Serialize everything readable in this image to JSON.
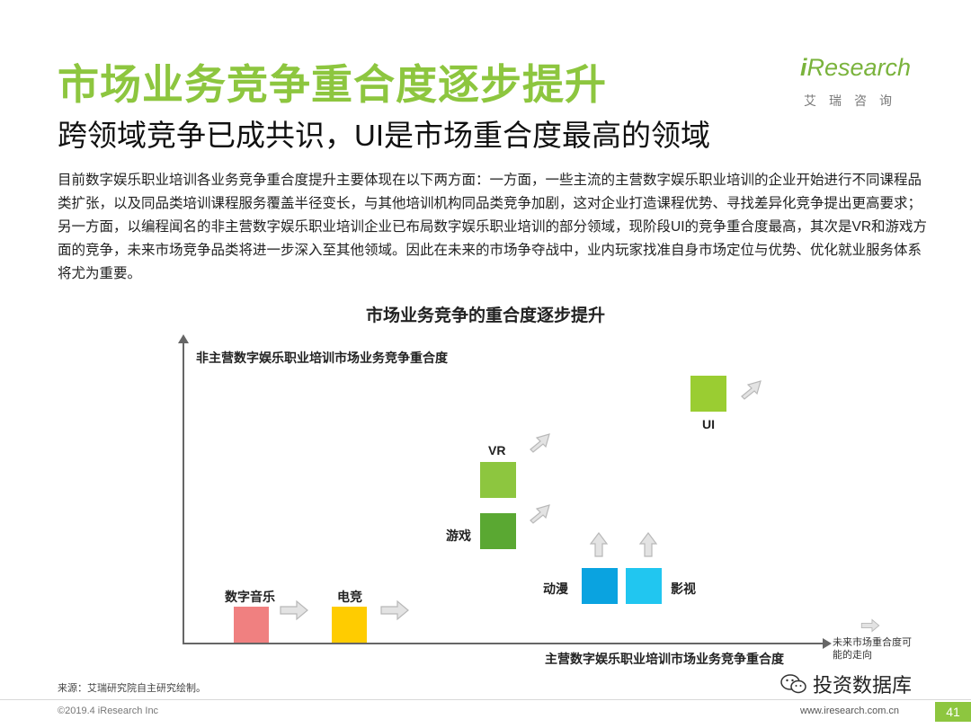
{
  "header": {
    "title": "市场业务竞争重合度逐步提升",
    "subtitle": "跨领域竞争已成共识，UI是市场重合度最高的领域"
  },
  "logo": {
    "brand": "Research",
    "brand_prefix": "i",
    "chinese": "艾瑞咨询"
  },
  "body_text": "目前数字娱乐职业培训各业务竞争重合度提升主要体现在以下两方面：一方面，一些主流的主营数字娱乐职业培训的企业开始进行不同课程品类扩张，以及同品类培训课程服务覆盖半径变长，与其他培训机构同品类竞争加剧，这对企业打造课程优势、寻找差异化竞争提出更高要求；另一方面，以编程闻名的非主营数字娱乐职业培训企业已布局数字娱乐职业培训的部分领域，现阶段UI的竞争重合度最高，其次是VR和游戏方面的竞争，未来市场竞争品类将进一步深入至其他领域。因此在未来的市场争夺战中，业内玩家找准自身市场定位与优势、优化就业服务体系将尤为重要。",
  "diagram": {
    "title": "市场业务竞争的重合度逐步提升",
    "y_axis_label": "非主营数字娱乐职业培训市场业务竞争重合度",
    "x_axis_label": "主营数字娱乐职业培训市场业务竞争重合度",
    "legend_text": "未来市场重合度可能的走向",
    "items": {
      "music": {
        "label": "数字音乐",
        "color": "#f08080"
      },
      "esports": {
        "label": "电竞",
        "color": "#ffcc00"
      },
      "game": {
        "label": "游戏",
        "color": "#5aa832"
      },
      "vr": {
        "label": "VR",
        "color": "#8dc63f"
      },
      "animation": {
        "label": "动漫",
        "color": "#0aa3e0"
      },
      "film": {
        "label": "影视",
        "color": "#21c6f0"
      },
      "ui": {
        "label": "UI",
        "color": "#9acd32"
      }
    }
  },
  "footer": {
    "source": "来源：艾瑞研究院自主研究绘制。",
    "copyright": "©2019.4 iResearch Inc",
    "site": "www.iresearch.com.cn",
    "page": "41",
    "watermark": "投资数据库"
  },
  "colors": {
    "accent": "#8dc63f",
    "arrow_gray": "#bdbdbd"
  }
}
